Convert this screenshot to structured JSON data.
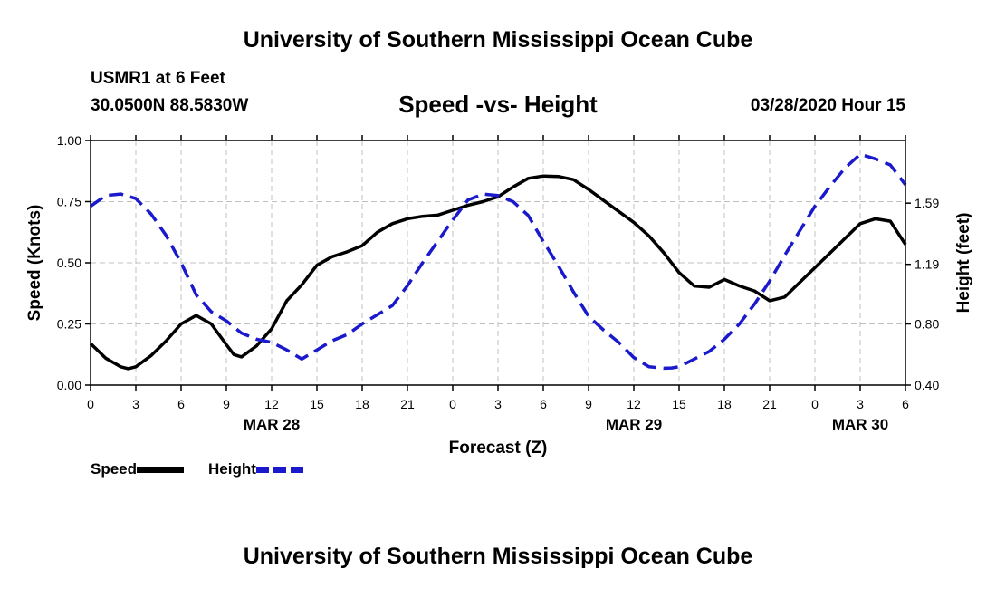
{
  "page": {
    "title_top": "University of Southern Mississippi Ocean Cube",
    "title_bottom": "University of Southern Mississippi Ocean Cube",
    "station": "USMR1 at 6 Feet",
    "coords": "30.0500N 88.5830W",
    "subtitle": "Speed -vs- Height",
    "runtime": "03/28/2020 Hour 15"
  },
  "legend": {
    "speed_label": "Speed",
    "height_label": "Height"
  },
  "colors": {
    "speed": "#000000",
    "height": "#1a1acc",
    "grid": "#c0c0c0"
  },
  "chart_data": {
    "type": "line",
    "title": "Speed -vs- Height",
    "xlabel": "Forecast (Z)",
    "ylabel": "Speed (Knots)",
    "ylabel_right": "Height (feet)",
    "xlim": [
      0,
      54
    ],
    "ylim": [
      0,
      1.0
    ],
    "ylim_right": [
      0.4,
      2.0
    ],
    "grid": true,
    "x_ticks": [
      0,
      3,
      6,
      9,
      12,
      15,
      18,
      21,
      24,
      27,
      30,
      33,
      36,
      39,
      42,
      45,
      48,
      51,
      54
    ],
    "x_tick_labels": [
      "0",
      "3",
      "6",
      "9",
      "12",
      "15",
      "18",
      "21",
      "0",
      "3",
      "6",
      "9",
      "12",
      "15",
      "18",
      "21",
      "0",
      "3",
      "6"
    ],
    "y_ticks": [
      0,
      0.25,
      0.5,
      0.75,
      1.0
    ],
    "y_tick_labels": [
      "0.00",
      "0.25",
      "0.50",
      "0.75",
      "1.00"
    ],
    "y_right_ticks": [
      0.4,
      0.8,
      1.19,
      1.59
    ],
    "y_right_tick_labels": [
      "0.40",
      "0.80",
      "1.19",
      "1.59"
    ],
    "date_labels": [
      {
        "x": 12,
        "label": "MAR 28"
      },
      {
        "x": 36,
        "label": "MAR 29"
      },
      {
        "x": 51,
        "label": "MAR 30"
      }
    ],
    "series": [
      {
        "name": "Speed",
        "axis": "left",
        "style": "solid",
        "x": [
          0,
          1,
          2,
          2.5,
          3,
          4,
          5,
          6,
          7,
          8,
          9,
          9.5,
          10,
          11,
          12,
          13,
          14,
          15,
          16,
          17,
          18,
          19,
          20,
          21,
          22,
          23,
          24,
          25,
          26,
          27,
          28,
          29,
          30,
          31,
          32,
          33,
          34,
          35,
          36,
          37,
          38,
          39,
          40,
          41,
          42,
          43,
          44,
          45,
          46,
          47,
          48,
          49,
          50,
          51,
          52,
          53,
          54
        ],
        "values": [
          0.17,
          0.11,
          0.075,
          0.067,
          0.075,
          0.12,
          0.18,
          0.25,
          0.285,
          0.25,
          0.165,
          0.125,
          0.115,
          0.16,
          0.23,
          0.345,
          0.41,
          0.49,
          0.525,
          0.545,
          0.57,
          0.625,
          0.66,
          0.68,
          0.69,
          0.695,
          0.715,
          0.735,
          0.75,
          0.77,
          0.81,
          0.845,
          0.855,
          0.853,
          0.84,
          0.8,
          0.755,
          0.71,
          0.665,
          0.61,
          0.54,
          0.46,
          0.405,
          0.4,
          0.432,
          0.405,
          0.385,
          0.345,
          0.36,
          0.42,
          0.48,
          0.54,
          0.6,
          0.66,
          0.68,
          0.67,
          0.575
        ]
      },
      {
        "name": "Height",
        "axis": "right",
        "style": "dashed",
        "x": [
          0,
          1,
          2,
          3,
          4,
          5,
          6,
          7,
          8,
          9,
          10,
          11,
          12,
          13,
          14,
          15,
          16,
          17,
          18,
          19,
          20,
          21,
          22,
          23,
          24,
          25,
          26,
          27,
          28,
          29,
          30,
          31,
          32,
          33,
          34,
          35,
          36,
          37,
          38,
          38.5,
          39,
          40,
          41,
          42,
          43,
          44,
          45,
          46,
          47,
          48,
          49,
          50,
          51,
          52,
          53,
          54
        ],
        "values": [
          1.57,
          1.64,
          1.65,
          1.62,
          1.52,
          1.38,
          1.2,
          0.99,
          0.88,
          0.82,
          0.74,
          0.7,
          0.68,
          0.63,
          0.57,
          0.63,
          0.69,
          0.73,
          0.8,
          0.86,
          0.92,
          1.05,
          1.2,
          1.34,
          1.48,
          1.61,
          1.65,
          1.64,
          1.6,
          1.51,
          1.34,
          1.18,
          1.01,
          0.85,
          0.76,
          0.68,
          0.58,
          0.52,
          0.51,
          0.512,
          0.52,
          0.57,
          0.62,
          0.7,
          0.8,
          0.93,
          1.08,
          1.25,
          1.41,
          1.57,
          1.7,
          1.82,
          1.91,
          1.88,
          1.84,
          1.71
        ]
      }
    ]
  }
}
